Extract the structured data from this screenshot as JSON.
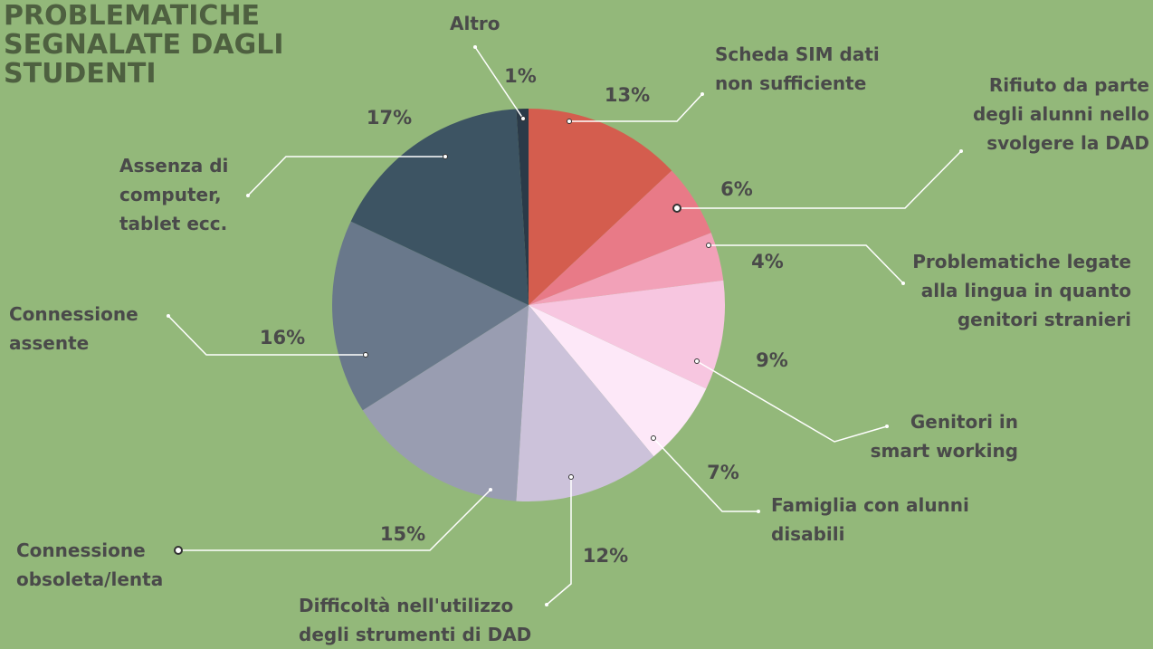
{
  "chart_data": {
    "type": "pie",
    "title": "PROBLEMATICHE SEGNALATE DAGLI STUDENTI",
    "categories": [
      "Scheda SIM dati non sufficiente",
      "Rifiuto da parte degli alunni nello svolgere la DAD",
      "Problematiche legate alla lingua in quanto genitori stranieri",
      "Genitori in smart working",
      "Famiglia con alunni disabili",
      "Difficoltà nell'utilizzo degli strumenti di DAD",
      "Connessione obsoleta/lenta",
      "Connessione assente",
      "Assenza di computer, tablet ecc.",
      "Altro"
    ],
    "values": [
      13,
      6,
      4,
      9,
      7,
      12,
      15,
      16,
      17,
      1
    ],
    "value_labels": [
      "13%",
      "6%",
      "4%",
      "9%",
      "7%",
      "12%",
      "15%",
      "16%",
      "17%",
      "1%"
    ],
    "colors": [
      "#d45d4e",
      "#e87a87",
      "#f2a1b8",
      "#f7c6e0",
      "#fde8f8",
      "#ccc2da",
      "#999db1",
      "#69788b",
      "#3d5463",
      "#2b3a48"
    ]
  }
}
